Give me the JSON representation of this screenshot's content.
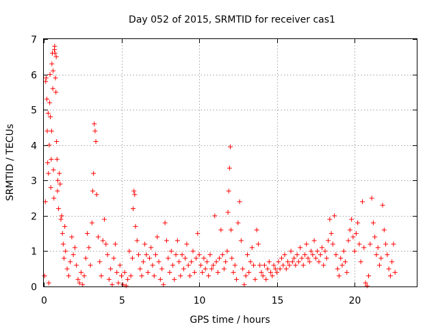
{
  "chart_data": {
    "type": "scatter",
    "title": "Day 052 of 2015, SRMTID for receiver cas1",
    "xlabel": "GPS time / hours",
    "ylabel": "SRMTID / TECUs",
    "xlim": [
      0,
      24
    ],
    "ylim": [
      0,
      7
    ],
    "xticks": [
      0,
      5,
      10,
      15,
      20
    ],
    "yticks": [
      0,
      1,
      2,
      3,
      4,
      5,
      6,
      7
    ],
    "grid": true,
    "marker": "+",
    "series": [
      {
        "name": "SRMTID",
        "color": "#ff0000",
        "points": [
          [
            0.05,
            0.3
          ],
          [
            0.1,
            2.4
          ],
          [
            0.12,
            5.8
          ],
          [
            0.15,
            5.9
          ],
          [
            0.2,
            5.3
          ],
          [
            0.22,
            4.4
          ],
          [
            0.25,
            3.5
          ],
          [
            0.28,
            4.9
          ],
          [
            0.3,
            3.2
          ],
          [
            0.32,
            0.1
          ],
          [
            0.35,
            4.0
          ],
          [
            0.38,
            5.2
          ],
          [
            0.4,
            6.0
          ],
          [
            0.42,
            4.8
          ],
          [
            0.45,
            2.8
          ],
          [
            0.48,
            3.6
          ],
          [
            0.5,
            4.4
          ],
          [
            0.52,
            6.3
          ],
          [
            0.55,
            6.6
          ],
          [
            0.58,
            5.6
          ],
          [
            0.6,
            6.1
          ],
          [
            0.62,
            3.3
          ],
          [
            0.65,
            2.5
          ],
          [
            0.68,
            6.7
          ],
          [
            0.7,
            6.8
          ],
          [
            0.72,
            6.6
          ],
          [
            0.75,
            5.9
          ],
          [
            0.78,
            5.5
          ],
          [
            0.8,
            6.5
          ],
          [
            0.82,
            4.1
          ],
          [
            0.85,
            3.6
          ],
          [
            0.88,
            2.7
          ],
          [
            0.9,
            3.0
          ],
          [
            0.95,
            2.2
          ],
          [
            1.0,
            3.2
          ],
          [
            1.05,
            2.9
          ],
          [
            1.1,
            1.9
          ],
          [
            1.15,
            2.0
          ],
          [
            1.2,
            1.5
          ],
          [
            1.25,
            1.2
          ],
          [
            1.3,
            0.8
          ],
          [
            1.35,
            1.7
          ],
          [
            1.4,
            1.0
          ],
          [
            1.5,
            0.5
          ],
          [
            1.6,
            0.3
          ],
          [
            1.7,
            0.7
          ],
          [
            1.8,
            1.4
          ],
          [
            1.9,
            0.9
          ],
          [
            2.0,
            1.1
          ],
          [
            2.1,
            0.6
          ],
          [
            2.2,
            0.2
          ],
          [
            2.3,
            0.1
          ],
          [
            2.4,
            0.4
          ],
          [
            2.5,
            0.05
          ],
          [
            2.6,
            0.3
          ],
          [
            2.7,
            0.8
          ],
          [
            2.8,
            1.5
          ],
          [
            2.9,
            1.1
          ],
          [
            3.0,
            0.6
          ],
          [
            3.1,
            1.8
          ],
          [
            3.15,
            2.7
          ],
          [
            3.2,
            3.2
          ],
          [
            3.25,
            4.6
          ],
          [
            3.3,
            4.4
          ],
          [
            3.35,
            4.1
          ],
          [
            3.4,
            2.6
          ],
          [
            3.5,
            1.4
          ],
          [
            3.6,
            0.7
          ],
          [
            3.7,
            0.3
          ],
          [
            3.8,
            1.3
          ],
          [
            3.9,
            1.9
          ],
          [
            4.0,
            1.2
          ],
          [
            4.1,
            0.9
          ],
          [
            4.2,
            0.2
          ],
          [
            4.3,
            0.5
          ],
          [
            4.4,
            0.05
          ],
          [
            4.5,
            0.8
          ],
          [
            4.6,
            1.2
          ],
          [
            4.7,
            0.4
          ],
          [
            4.8,
            0.1
          ],
          [
            4.9,
            0.6
          ],
          [
            5.0,
            0.3
          ],
          [
            5.1,
            0.05
          ],
          [
            5.2,
            0.4
          ],
          [
            5.3,
            0.02
          ],
          [
            5.4,
            0.2
          ],
          [
            5.5,
            1.0
          ],
          [
            5.6,
            0.3
          ],
          [
            5.7,
            0.8
          ],
          [
            5.75,
            2.2
          ],
          [
            5.8,
            2.7
          ],
          [
            5.85,
            2.6
          ],
          [
            5.9,
            1.7
          ],
          [
            6.0,
            1.3
          ],
          [
            6.1,
            0.9
          ],
          [
            6.2,
            0.5
          ],
          [
            6.3,
            0.3
          ],
          [
            6.4,
            0.7
          ],
          [
            6.5,
            1.2
          ],
          [
            6.6,
            0.9
          ],
          [
            6.7,
            0.4
          ],
          [
            6.8,
            0.8
          ],
          [
            6.9,
            1.1
          ],
          [
            7.0,
            0.6
          ],
          [
            7.1,
            0.3
          ],
          [
            7.2,
            0.9
          ],
          [
            7.3,
            1.4
          ],
          [
            7.4,
            0.7
          ],
          [
            7.5,
            0.2
          ],
          [
            7.6,
            0.5
          ],
          [
            7.7,
            0.05
          ],
          [
            7.8,
            1.8
          ],
          [
            7.9,
            1.3
          ],
          [
            8.0,
            0.8
          ],
          [
            8.1,
            0.4
          ],
          [
            8.2,
            1.0
          ],
          [
            8.3,
            0.6
          ],
          [
            8.4,
            0.2
          ],
          [
            8.5,
            0.9
          ],
          [
            8.6,
            1.3
          ],
          [
            8.7,
            0.7
          ],
          [
            8.8,
            0.3
          ],
          [
            8.9,
            0.9
          ],
          [
            9.0,
            0.5
          ],
          [
            9.1,
            0.8
          ],
          [
            9.2,
            1.2
          ],
          [
            9.3,
            0.6
          ],
          [
            9.4,
            0.3
          ],
          [
            9.5,
            0.7
          ],
          [
            9.6,
            1.0
          ],
          [
            9.7,
            0.4
          ],
          [
            9.8,
            0.8
          ],
          [
            9.9,
            1.5
          ],
          [
            10.0,
            0.9
          ],
          [
            10.1,
            0.6
          ],
          [
            10.2,
            0.4
          ],
          [
            10.3,
            0.8
          ],
          [
            10.4,
            0.5
          ],
          [
            10.5,
            0.7
          ],
          [
            10.6,
            0.3
          ],
          [
            10.7,
            0.9
          ],
          [
            10.8,
            0.5
          ],
          [
            10.9,
            0.6
          ],
          [
            11.0,
            2.0
          ],
          [
            11.1,
            0.7
          ],
          [
            11.2,
            0.4
          ],
          [
            11.3,
            0.8
          ],
          [
            11.4,
            1.6
          ],
          [
            11.5,
            0.9
          ],
          [
            11.6,
            0.5
          ],
          [
            11.7,
            0.7
          ],
          [
            11.8,
            1.0
          ],
          [
            11.85,
            2.1
          ],
          [
            11.9,
            2.7
          ],
          [
            11.95,
            3.35
          ],
          [
            12.0,
            3.95
          ],
          [
            12.05,
            1.6
          ],
          [
            12.1,
            0.8
          ],
          [
            12.2,
            0.4
          ],
          [
            12.3,
            0.6
          ],
          [
            12.4,
            0.2
          ],
          [
            12.5,
            1.8
          ],
          [
            12.6,
            2.4
          ],
          [
            12.7,
            1.3
          ],
          [
            12.8,
            0.5
          ],
          [
            12.9,
            0.05
          ],
          [
            13.0,
            0.3
          ],
          [
            13.1,
            0.9
          ],
          [
            13.2,
            0.4
          ],
          [
            13.3,
            0.7
          ],
          [
            13.4,
            1.1
          ],
          [
            13.5,
            0.6
          ],
          [
            13.6,
            0.2
          ],
          [
            13.7,
            1.6
          ],
          [
            13.8,
            1.2
          ],
          [
            13.9,
            0.6
          ],
          [
            14.0,
            0.4
          ],
          [
            14.1,
            0.3
          ],
          [
            14.2,
            0.6
          ],
          [
            14.3,
            0.2
          ],
          [
            14.4,
            0.5
          ],
          [
            14.5,
            0.7
          ],
          [
            14.6,
            0.4
          ],
          [
            14.7,
            0.3
          ],
          [
            14.8,
            0.6
          ],
          [
            14.9,
            0.5
          ],
          [
            15.0,
            0.4
          ],
          [
            15.1,
            0.7
          ],
          [
            15.2,
            0.5
          ],
          [
            15.3,
            0.8
          ],
          [
            15.4,
            0.6
          ],
          [
            15.5,
            0.9
          ],
          [
            15.6,
            0.5
          ],
          [
            15.7,
            0.7
          ],
          [
            15.8,
            0.6
          ],
          [
            15.9,
            1.0
          ],
          [
            16.0,
            0.7
          ],
          [
            16.1,
            0.8
          ],
          [
            16.2,
            0.6
          ],
          [
            16.3,
            0.9
          ],
          [
            16.4,
            0.7
          ],
          [
            16.5,
            1.1
          ],
          [
            16.6,
            0.8
          ],
          [
            16.7,
            0.6
          ],
          [
            16.8,
            0.9
          ],
          [
            16.9,
            1.2
          ],
          [
            17.0,
            0.8
          ],
          [
            17.1,
            0.7
          ],
          [
            17.2,
            1.0
          ],
          [
            17.3,
            0.9
          ],
          [
            17.4,
            1.3
          ],
          [
            17.5,
            0.8
          ],
          [
            17.6,
            1.0
          ],
          [
            17.7,
            0.7
          ],
          [
            17.8,
            0.9
          ],
          [
            17.9,
            1.1
          ],
          [
            18.0,
            0.6
          ],
          [
            18.1,
            1.0
          ],
          [
            18.2,
            0.8
          ],
          [
            18.3,
            1.3
          ],
          [
            18.4,
            1.9
          ],
          [
            18.5,
            1.5
          ],
          [
            18.6,
            1.2
          ],
          [
            18.7,
            2.0
          ],
          [
            18.8,
            0.9
          ],
          [
            18.9,
            0.5
          ],
          [
            19.0,
            0.3
          ],
          [
            19.1,
            0.8
          ],
          [
            19.2,
            0.6
          ],
          [
            19.3,
            1.0
          ],
          [
            19.4,
            0.7
          ],
          [
            19.5,
            0.4
          ],
          [
            19.6,
            1.3
          ],
          [
            19.7,
            1.6
          ],
          [
            19.8,
            1.9
          ],
          [
            19.9,
            1.4
          ],
          [
            20.0,
            1.0
          ],
          [
            20.1,
            1.5
          ],
          [
            20.2,
            1.8
          ],
          [
            20.3,
            1.2
          ],
          [
            20.4,
            0.7
          ],
          [
            20.5,
            2.4
          ],
          [
            20.6,
            1.1
          ],
          [
            20.7,
            0.1
          ],
          [
            20.8,
            0.02
          ],
          [
            20.9,
            0.3
          ],
          [
            21.0,
            1.2
          ],
          [
            21.1,
            2.5
          ],
          [
            21.2,
            1.8
          ],
          [
            21.3,
            1.4
          ],
          [
            21.4,
            0.9
          ],
          [
            21.5,
            1.1
          ],
          [
            21.6,
            0.6
          ],
          [
            21.7,
            0.8
          ],
          [
            21.8,
            2.3
          ],
          [
            21.9,
            1.6
          ],
          [
            22.0,
            1.2
          ],
          [
            22.1,
            0.9
          ],
          [
            22.2,
            0.5
          ],
          [
            22.3,
            0.3
          ],
          [
            22.4,
            0.7
          ],
          [
            22.5,
            1.2
          ],
          [
            22.6,
            0.4
          ]
        ]
      }
    ]
  }
}
